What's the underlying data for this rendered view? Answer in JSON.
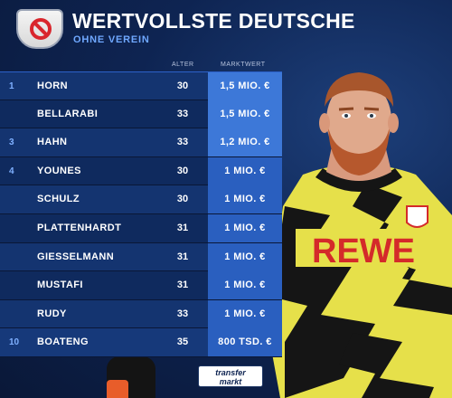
{
  "header": {
    "title": "WERTVOLLSTE DEUTSCHE",
    "subtitle": "OHNE VEREIN"
  },
  "table": {
    "col_age": "ALTER",
    "col_value": "MARKTWERT",
    "rows": [
      {
        "rank": "1",
        "name": "HORN",
        "age": "30",
        "value": "1,5 MIO. €"
      },
      {
        "rank": "",
        "name": "BELLARABI",
        "age": "33",
        "value": "1,5 MIO. €"
      },
      {
        "rank": "3",
        "name": "HAHN",
        "age": "33",
        "value": "1,2 MIO. €"
      },
      {
        "rank": "4",
        "name": "YOUNES",
        "age": "30",
        "value": "1 MIO. €"
      },
      {
        "rank": "",
        "name": "SCHULZ",
        "age": "30",
        "value": "1 MIO. €"
      },
      {
        "rank": "",
        "name": "PLATTENHARDT",
        "age": "31",
        "value": "1 MIO. €"
      },
      {
        "rank": "",
        "name": "GIESSELMANN",
        "age": "31",
        "value": "1 MIO. €"
      },
      {
        "rank": "",
        "name": "MUSTAFI",
        "age": "31",
        "value": "1 MIO. €"
      },
      {
        "rank": "",
        "name": "RUDY",
        "age": "33",
        "value": "1 MIO. €"
      },
      {
        "rank": "10",
        "name": "BOATENG",
        "age": "35",
        "value": "800 TSD. €"
      }
    ]
  },
  "player_shirt_text": "REWE",
  "logo": {
    "line1": "transfer",
    "line2": "markt"
  },
  "colors": {
    "background": "#0e2452",
    "row_dark": "#0f2a5e",
    "row_light": "#143470",
    "value_cell": "#2a5fbf",
    "shirt_yellow": "#e8e34a",
    "shirt_red": "#d42a2a"
  }
}
